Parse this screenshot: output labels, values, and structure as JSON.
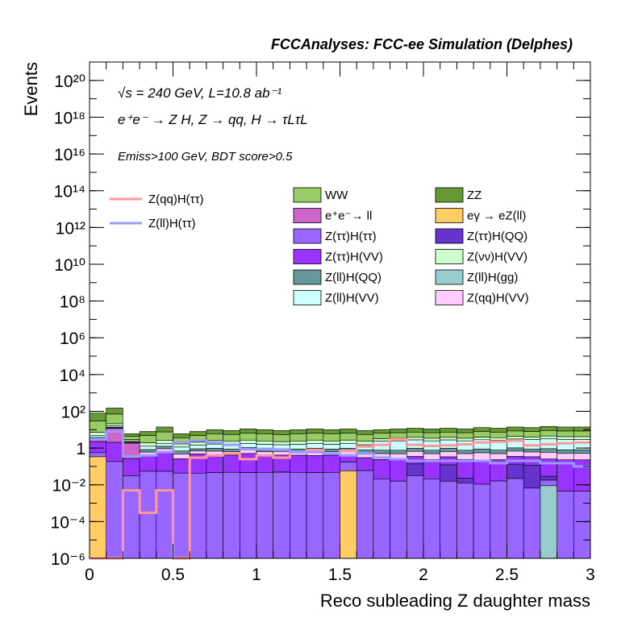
{
  "chart_data": {
    "type": "bar",
    "stacked": true,
    "log_y": true,
    "title": "FCCAnalyses: FCC-ee Simulation (Delphes)",
    "annotations": [
      "√s = 240 GeV, L=10.8 ab⁻¹",
      "e⁺e⁻ → Z H, Z → qq, H → τLτL",
      "Emiss>100 GeV, BDT score>0.5"
    ],
    "xlabel": "Reco subleading Z daughter mass",
    "ylabel": "Events",
    "xlim": [
      0,
      3
    ],
    "ylim": [
      1e-06,
      1e+21
    ],
    "x_ticks": [
      "0",
      "0.5",
      "1",
      "1.5",
      "2",
      "2.5",
      "3"
    ],
    "y_ticks": [
      "10⁻⁶",
      "10⁻⁴",
      "10⁻²",
      "1",
      "10²",
      "10⁴",
      "10⁶",
      "10⁸",
      "10¹⁰",
      "10¹²",
      "10¹⁴",
      "10¹⁶",
      "10¹⁸",
      "10²⁰"
    ],
    "bin_edges": [
      0,
      0.1,
      0.2,
      0.3,
      0.4,
      0.5,
      0.6,
      0.7,
      0.8,
      0.9,
      1.0,
      1.1,
      1.2,
      1.3,
      1.4,
      1.5,
      1.6,
      1.7,
      1.8,
      1.9,
      2.0,
      2.1,
      2.2,
      2.3,
      2.4,
      2.5,
      2.6,
      2.7,
      2.8,
      2.9,
      3.0
    ],
    "legend_placement": "top-right",
    "stack_totals": [
      80,
      150,
      6,
      8,
      14,
      6,
      8,
      10,
      9,
      11,
      10,
      9,
      10,
      11,
      10,
      11,
      9,
      10,
      11,
      12,
      11,
      12,
      11,
      13,
      12,
      14,
      13,
      15,
      14,
      14
    ],
    "stack_series": [
      {
        "name": "ZZ",
        "color": "#669933",
        "values": [
          45,
          65,
          2.2,
          3,
          6,
          2.2,
          3,
          3.5,
          3,
          4,
          3.4,
          3,
          3.4,
          4,
          3.4,
          4,
          3,
          3.4,
          4,
          4.4,
          4,
          4.4,
          4,
          4.8,
          4.4,
          5,
          4.6,
          5.4,
          5,
          5
        ]
      },
      {
        "name": "WW",
        "color": "#99cc66",
        "values": [
          20,
          40,
          1.8,
          2.6,
          4.5,
          1.8,
          2.5,
          3,
          2.6,
          3.2,
          3,
          2.6,
          3,
          3.2,
          3,
          3.2,
          2.6,
          3,
          3.2,
          3.4,
          3.2,
          3.4,
          3.2,
          3.6,
          3.4,
          3.8,
          3.6,
          4,
          3.8,
          3.8
        ]
      },
      {
        "name": "Z(νν)H(VV)",
        "color": "#ccffcc",
        "values": [
          2,
          4,
          0.5,
          0.6,
          0.8,
          0.5,
          0.6,
          0.8,
          0.7,
          0.8,
          0.7,
          0.6,
          0.7,
          0.8,
          0.7,
          0.8,
          0.7,
          0.8,
          0.9,
          1,
          0.9,
          1,
          0.9,
          1,
          1,
          1.1,
          1,
          1.2,
          1.1,
          1.1
        ]
      },
      {
        "name": "Z(ll)H(VV)",
        "color": "#ccffff",
        "values": [
          1,
          2,
          0.4,
          0.4,
          0.5,
          0.4,
          0.5,
          0.6,
          0.5,
          0.6,
          0.6,
          0.5,
          0.6,
          0.7,
          0.6,
          0.7,
          0.6,
          1.5,
          1.6,
          1.7,
          1.6,
          1.7,
          1.6,
          1.8,
          1.7,
          1.9,
          1.8,
          2,
          1.9,
          1.9
        ]
      },
      {
        "name": "Z(ll)H(QQ)",
        "color": "#669999",
        "values": [
          0.5,
          0.8,
          0.2,
          0.2,
          0.3,
          0.2,
          0.2,
          0.25,
          0.2,
          0.25,
          0.2,
          0.2,
          0.2,
          0.25,
          0.2,
          0.25,
          0.2,
          0.25,
          0.25,
          0.3,
          0.25,
          0.3,
          0.25,
          0.3,
          0.25,
          0.3,
          0.25,
          0.3,
          0.25,
          0.25
        ]
      },
      {
        "name": "Z(qq)H(VV)",
        "color": "#ffccff",
        "values": [
          0.4,
          0.6,
          0.2,
          0.2,
          0.3,
          0.2,
          0.2,
          0.25,
          0.2,
          0.25,
          0.2,
          0.2,
          0.2,
          0.25,
          0.2,
          0.25,
          0.2,
          0.25,
          0.25,
          0.3,
          0.25,
          0.3,
          0.25,
          0.3,
          0.25,
          0.3,
          0.25,
          0.3,
          0.25,
          0.25
        ]
      },
      {
        "name": "e⁺e⁻→ ll",
        "color": "#cc66cc",
        "values": [
          0.5,
          8,
          2,
          0,
          0,
          0,
          0,
          0,
          0,
          0,
          0,
          0,
          0,
          0,
          0,
          0,
          0,
          0,
          0,
          0,
          0,
          0,
          0,
          0,
          0,
          0,
          0,
          0,
          0,
          0
        ]
      },
      {
        "name": "Z(ττ)H(VV)",
        "color": "#9933ff",
        "values": [
          1.5,
          1.5,
          0.3,
          0.3,
          0.5,
          0.2,
          0.4,
          0.3,
          0.3,
          0.4,
          0.3,
          0.3,
          0.3,
          0.3,
          0.3,
          0.2,
          0.2,
          0.2,
          0.2,
          0.2,
          0.2,
          0.2,
          0.2,
          0.2,
          0.2,
          0.2,
          0.2,
          0.2,
          0.2,
          0.2
        ]
      },
      {
        "name": "Z(ττ)H(QQ)",
        "color": "#6633cc",
        "values": [
          0,
          0,
          0,
          0,
          0.0001,
          0,
          0,
          0,
          0,
          0,
          0,
          0.001,
          0,
          0,
          0,
          0,
          0,
          0,
          0,
          0.1,
          0,
          0.1,
          0.01,
          0,
          0,
          0.1,
          0.1,
          0.01,
          0,
          0
        ]
      },
      {
        "name": "Z(ττ)H(ττ)",
        "color": "#9966ff",
        "values": [
          0.2,
          0.15,
          0.04,
          0.05,
          0.05,
          0.04,
          0.04,
          0.04,
          0.04,
          0.04,
          0.04,
          0.04,
          0.04,
          0.04,
          0.04,
          0.1,
          0.05,
          0.02,
          0.015,
          0.03,
          0.02,
          0.015,
          0.012,
          0.01,
          0.015,
          0.02,
          0.006,
          0.008,
          0.004,
          0.004
        ]
      },
      {
        "name": "Z(ll)H(gg)",
        "color": "#99cccc",
        "values": [
          0,
          0,
          0,
          0,
          0,
          0,
          0,
          0,
          0,
          0,
          0,
          0,
          0,
          0,
          0,
          0,
          0,
          0,
          0,
          0,
          0,
          0,
          0,
          0,
          0,
          0,
          0,
          0.008,
          0,
          0
        ]
      },
      {
        "name": "eγ → eZ(ll)",
        "color": "#ffcc66",
        "values": [
          0.3,
          0,
          0,
          0,
          0,
          0,
          0,
          0,
          0,
          0,
          0,
          0,
          0,
          0,
          0,
          0.05,
          0,
          0,
          0,
          0,
          0,
          0,
          0,
          0,
          0,
          0,
          0,
          0,
          0,
          0
        ]
      }
    ],
    "line_series": [
      {
        "name": "Z(qq)H(ττ)",
        "color": "#ff9999",
        "values": [
          1e-06,
          1e-06,
          0.005,
          0.0003,
          0.005,
          1e-06,
          0.3,
          0.4,
          0.5,
          0.25,
          0.4,
          0.3,
          0.6,
          0.8,
          0.5,
          0.7,
          1.2,
          1.5,
          3,
          1.5,
          1.3,
          1.4,
          1.6,
          2,
          2.2,
          2.5,
          1.4,
          1.6,
          1.8,
          2
        ]
      },
      {
        "name": "Z(ll)H(ττ)",
        "color": "#9999ff",
        "values": [
          3,
          8,
          0.35,
          0.4,
          0.6,
          2,
          2.5,
          2,
          1.5,
          0.9,
          0.9,
          0.8,
          0.6,
          0.6,
          0.5,
          0.4,
          0.5,
          0.3,
          0.25,
          0.2,
          0.2,
          0.2,
          0.2,
          0.2,
          0.15,
          0.2,
          0.2,
          0.15,
          0.15,
          0.1
        ]
      }
    ]
  }
}
